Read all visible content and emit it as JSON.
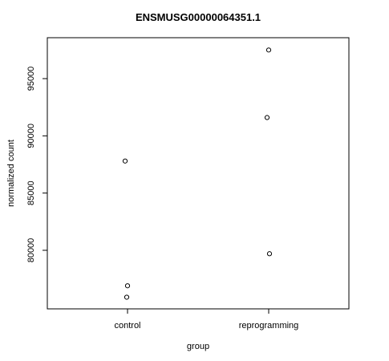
{
  "chart_data": {
    "type": "scatter",
    "title": "ENSMUSG00000064351.1",
    "xlabel": "group",
    "ylabel": "normalized count",
    "categories": [
      "control",
      "reprogramming"
    ],
    "yticks": [
      80000,
      85000,
      90000,
      95000
    ],
    "ylim": [
      75000,
      98000
    ],
    "grid": false,
    "points": [
      {
        "category": "control",
        "y": 87800
      },
      {
        "category": "control",
        "y": 76900
      },
      {
        "category": "control",
        "y": 75900
      },
      {
        "category": "reprogramming",
        "y": 97500
      },
      {
        "category": "reprogramming",
        "y": 91600
      },
      {
        "category": "reprogramming",
        "y": 79700
      }
    ]
  }
}
